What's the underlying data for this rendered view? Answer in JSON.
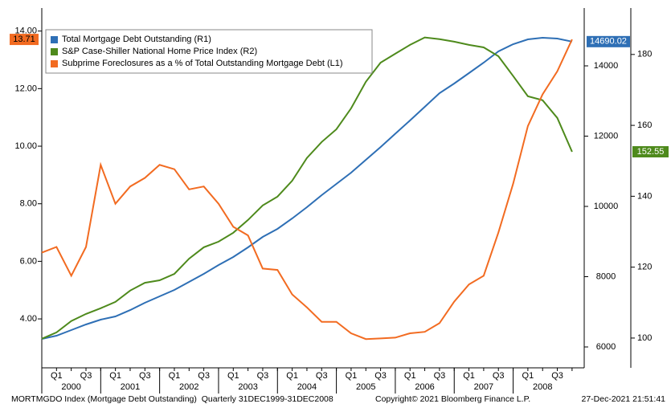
{
  "chart_data": {
    "type": "line",
    "categories": [
      "Q4 1999",
      "Q1 2000",
      "Q2 2000",
      "Q3 2000",
      "Q4 2000",
      "Q1 2001",
      "Q2 2001",
      "Q3 2001",
      "Q4 2001",
      "Q1 2002",
      "Q2 2002",
      "Q3 2002",
      "Q4 2002",
      "Q1 2003",
      "Q2 2003",
      "Q3 2003",
      "Q4 2003",
      "Q1 2004",
      "Q2 2004",
      "Q3 2004",
      "Q4 2004",
      "Q1 2005",
      "Q2 2005",
      "Q3 2005",
      "Q4 2005",
      "Q1 2006",
      "Q2 2006",
      "Q3 2006",
      "Q4 2006",
      "Q1 2007",
      "Q2 2007",
      "Q3 2007",
      "Q4 2007",
      "Q1 2008",
      "Q2 2008",
      "Q3 2008",
      "Q4 2008"
    ],
    "x_quarter_labels": [
      "Q1",
      "Q3"
    ],
    "x_year_labels": [
      "2000",
      "2001",
      "2002",
      "2003",
      "2004",
      "2005",
      "2006",
      "2007",
      "2008"
    ],
    "series": [
      {
        "name": "Total Mortgage Debt Outstanding (R1)",
        "color": "#2e6fb5",
        "axis": "y2",
        "values": [
          6229,
          6320,
          6480,
          6640,
          6777,
          6869,
          7050,
          7257,
          7440,
          7623,
          7851,
          8080,
          8331,
          8560,
          8834,
          9131,
          9360,
          9657,
          9977,
          10320,
          10640,
          10960,
          11326,
          11690,
          12069,
          12446,
          12834,
          13223,
          13497,
          13794,
          14091,
          14411,
          14617,
          14754,
          14800,
          14777,
          14690.02
        ]
      },
      {
        "name": "S&P Case-Shiller National Home Price Index (R2)",
        "color": "#4e8a1c",
        "axis": "y3",
        "values": [
          99.8,
          101.6,
          104.8,
          106.8,
          108.4,
          110.2,
          113.4,
          115.6,
          116.3,
          118.1,
          122.4,
          125.6,
          127.2,
          129.7,
          133.3,
          137.4,
          139.9,
          144.4,
          150.8,
          155.3,
          158.9,
          164.8,
          172.3,
          177.7,
          180.2,
          182.7,
          184.8,
          184.3,
          183.6,
          182.7,
          182.0,
          179.5,
          173.9,
          168.2,
          167.1,
          162.1,
          152.55
        ]
      },
      {
        "name": "Subprime Foreclosures as a % of Total Outstanding Mortgage Debt (L1)",
        "color": "#f26b21",
        "axis": "y",
        "values": [
          6.3,
          6.5,
          5.5,
          6.5,
          9.35,
          8.0,
          8.6,
          8.9,
          9.35,
          9.2,
          8.5,
          8.6,
          8.0,
          7.2,
          6.9,
          5.75,
          5.7,
          4.85,
          4.4,
          3.9,
          3.9,
          3.5,
          3.3,
          3.32,
          3.35,
          3.5,
          3.55,
          3.85,
          4.6,
          5.2,
          5.5,
          7.0,
          8.7,
          10.7,
          11.8,
          12.6,
          13.71
        ]
      }
    ],
    "ylim": [
      2.3,
      14.8
    ],
    "yticks": [
      {
        "value": 4,
        "label": "4.00"
      },
      {
        "value": 6,
        "label": "6.00"
      },
      {
        "value": 8,
        "label": "8.00"
      },
      {
        "value": 10,
        "label": "10.00"
      },
      {
        "value": 12,
        "label": "12.00"
      },
      {
        "value": 14,
        "label": "14.00"
      }
    ],
    "y2lim": [
      5406,
      15646
    ],
    "y2ticks": [
      6000,
      8000,
      10000,
      12000,
      14000
    ],
    "y3lim": [
      91.6,
      193.1
    ],
    "y3ticks": [
      100,
      120,
      140,
      160,
      180
    ],
    "legend": "upper left",
    "footer": [
      "MORTMGDO Index (Mortgage Debt Outstanding)  Quarterly 31DEC1999-31DEC2008",
      "Copyright© 2021 Bloomberg Finance L.P.",
      "27-Dec-2021 21:51:41"
    ]
  }
}
